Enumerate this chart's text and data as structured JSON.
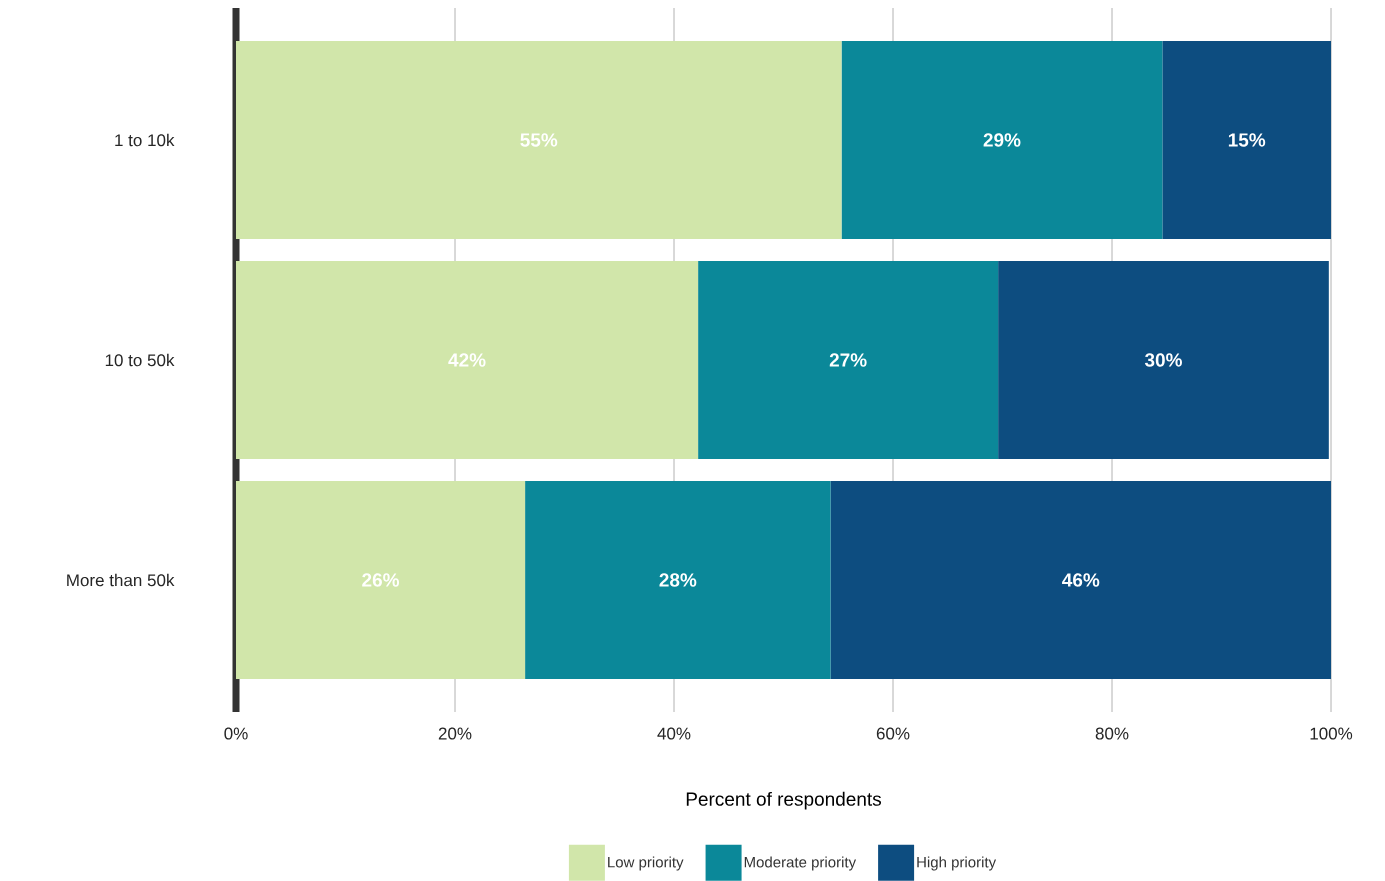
{
  "chart_data": {
    "type": "bar",
    "orientation": "horizontal",
    "stacked": true,
    "categories": [
      "1 to 10k",
      "10 to 50k",
      "More than 50k"
    ],
    "xlabel": "Percent of respondents",
    "xlim": [
      0,
      100
    ],
    "xticks": [
      {
        "value": 0,
        "label": "0%"
      },
      {
        "value": 20,
        "label": "20%"
      },
      {
        "value": 40,
        "label": "40%"
      },
      {
        "value": 60,
        "label": "60%"
      },
      {
        "value": 80,
        "label": "80%"
      },
      {
        "value": 100,
        "label": "100%"
      }
    ],
    "grid": "x",
    "legend": "bottom",
    "series": [
      {
        "name": "Low priority",
        "color": "#d1e6aa",
        "values": [
          55.3,
          42.2,
          26.4
        ],
        "value_labels": [
          "55%",
          "42%",
          "26%"
        ]
      },
      {
        "name": "Moderate priority",
        "color": "#0b8899",
        "values": [
          29.3,
          27.4,
          27.9
        ],
        "value_labels": [
          "29%",
          "27%",
          "28%"
        ]
      },
      {
        "name": "High priority",
        "color": "#0d4d80",
        "values": [
          15.4,
          30.2,
          45.7
        ],
        "value_labels": [
          "15%",
          "30%",
          "46%"
        ]
      }
    ]
  }
}
